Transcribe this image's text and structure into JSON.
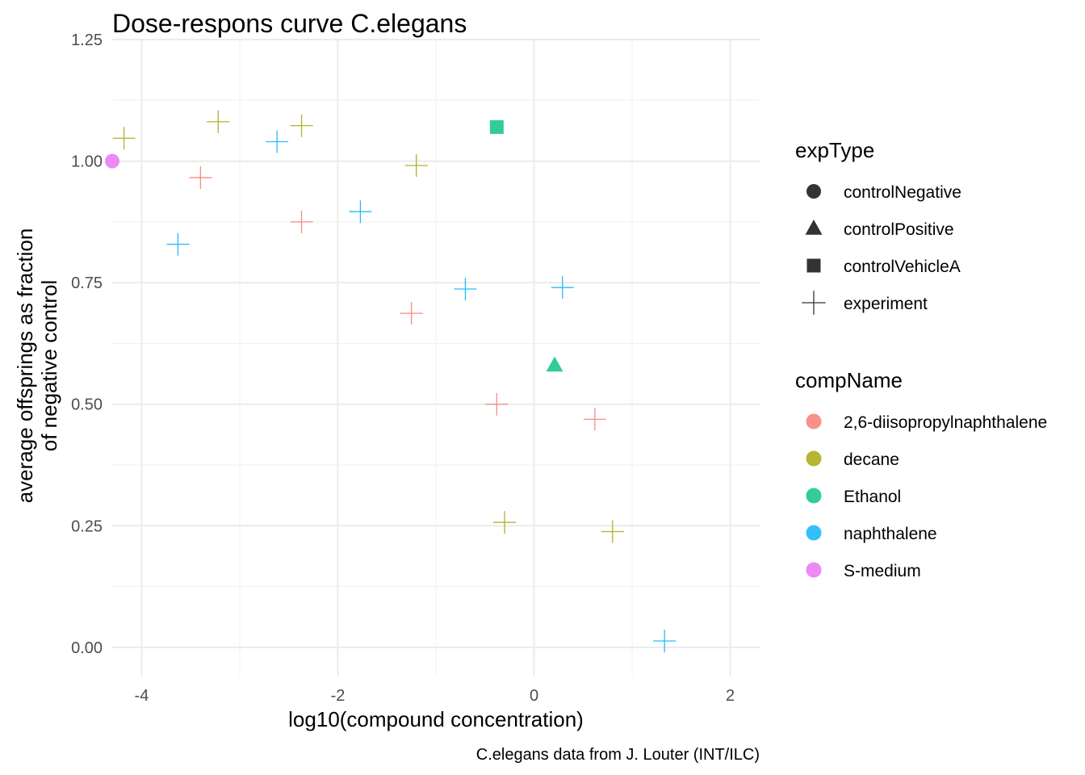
{
  "chart_data": {
    "type": "scatter",
    "title": "Dose-respons curve C.elegans",
    "xlabel": "log10(compound concentration)",
    "ylabel_lines": [
      "average offsprings as fraction",
      "of negative control"
    ],
    "caption": "C.elegans data from J. Louter (INT/ILC)",
    "xlim": [
      -4.3,
      2.3
    ],
    "ylim": [
      -0.06,
      1.25
    ],
    "x_ticks": [
      -4,
      -2,
      0,
      2
    ],
    "x_tick_labels": [
      "-4",
      "-2",
      "0",
      "2"
    ],
    "y_ticks": [
      0.0,
      0.25,
      0.5,
      0.75,
      1.0,
      1.25
    ],
    "y_tick_labels": [
      "0.00",
      "0.25",
      "0.50",
      "0.75",
      "1.00",
      "1.25"
    ],
    "grid": true,
    "legend_position": "right",
    "shape_legend": {
      "title": "expType",
      "items": [
        {
          "label": "controlNegative",
          "shape": "circle"
        },
        {
          "label": "controlPositive",
          "shape": "triangle"
        },
        {
          "label": "controlVehicleA",
          "shape": "square"
        },
        {
          "label": "experiment",
          "shape": "plus"
        }
      ]
    },
    "color_legend": {
      "title": "compName",
      "items": [
        {
          "label": "2,6-diisopropylnaphthalene",
          "color": "#F8766D"
        },
        {
          "label": "decane",
          "color": "#A3A500"
        },
        {
          "label": "Ethanol",
          "color": "#00BF7D"
        },
        {
          "label": "naphthalene",
          "color": "#00B0F6"
        },
        {
          "label": "S-medium",
          "color": "#E76BF3"
        }
      ]
    },
    "points": [
      {
        "x": -4.3,
        "y": 1.0,
        "expType": "controlNegative",
        "compName": "S-medium"
      },
      {
        "x": -4.18,
        "y": 1.047,
        "expType": "experiment",
        "compName": "decane"
      },
      {
        "x": -3.22,
        "y": 1.081,
        "expType": "experiment",
        "compName": "decane"
      },
      {
        "x": -2.37,
        "y": 1.073,
        "expType": "experiment",
        "compName": "decane"
      },
      {
        "x": -1.2,
        "y": 0.991,
        "expType": "experiment",
        "compName": "decane"
      },
      {
        "x": -0.3,
        "y": 0.257,
        "expType": "experiment",
        "compName": "decane"
      },
      {
        "x": 0.8,
        "y": 0.238,
        "expType": "experiment",
        "compName": "decane"
      },
      {
        "x": -3.4,
        "y": 0.966,
        "expType": "experiment",
        "compName": "2,6-diisopropylnaphthalene"
      },
      {
        "x": -2.37,
        "y": 0.875,
        "expType": "experiment",
        "compName": "2,6-diisopropylnaphthalene"
      },
      {
        "x": -1.25,
        "y": 0.687,
        "expType": "experiment",
        "compName": "2,6-diisopropylnaphthalene"
      },
      {
        "x": -0.38,
        "y": 0.5,
        "expType": "experiment",
        "compName": "2,6-diisopropylnaphthalene"
      },
      {
        "x": 0.62,
        "y": 0.469,
        "expType": "experiment",
        "compName": "2,6-diisopropylnaphthalene"
      },
      {
        "x": -3.63,
        "y": 0.829,
        "expType": "experiment",
        "compName": "naphthalene"
      },
      {
        "x": -2.62,
        "y": 1.04,
        "expType": "experiment",
        "compName": "naphthalene"
      },
      {
        "x": -1.77,
        "y": 0.896,
        "expType": "experiment",
        "compName": "naphthalene"
      },
      {
        "x": -0.7,
        "y": 0.737,
        "expType": "experiment",
        "compName": "naphthalene"
      },
      {
        "x": 0.29,
        "y": 0.74,
        "expType": "experiment",
        "compName": "naphthalene"
      },
      {
        "x": 1.33,
        "y": 0.013,
        "expType": "experiment",
        "compName": "naphthalene"
      },
      {
        "x": -0.38,
        "y": 1.07,
        "expType": "controlVehicleA",
        "compName": "Ethanol"
      },
      {
        "x": 0.21,
        "y": 0.58,
        "expType": "controlPositive",
        "compName": "Ethanol"
      }
    ]
  }
}
